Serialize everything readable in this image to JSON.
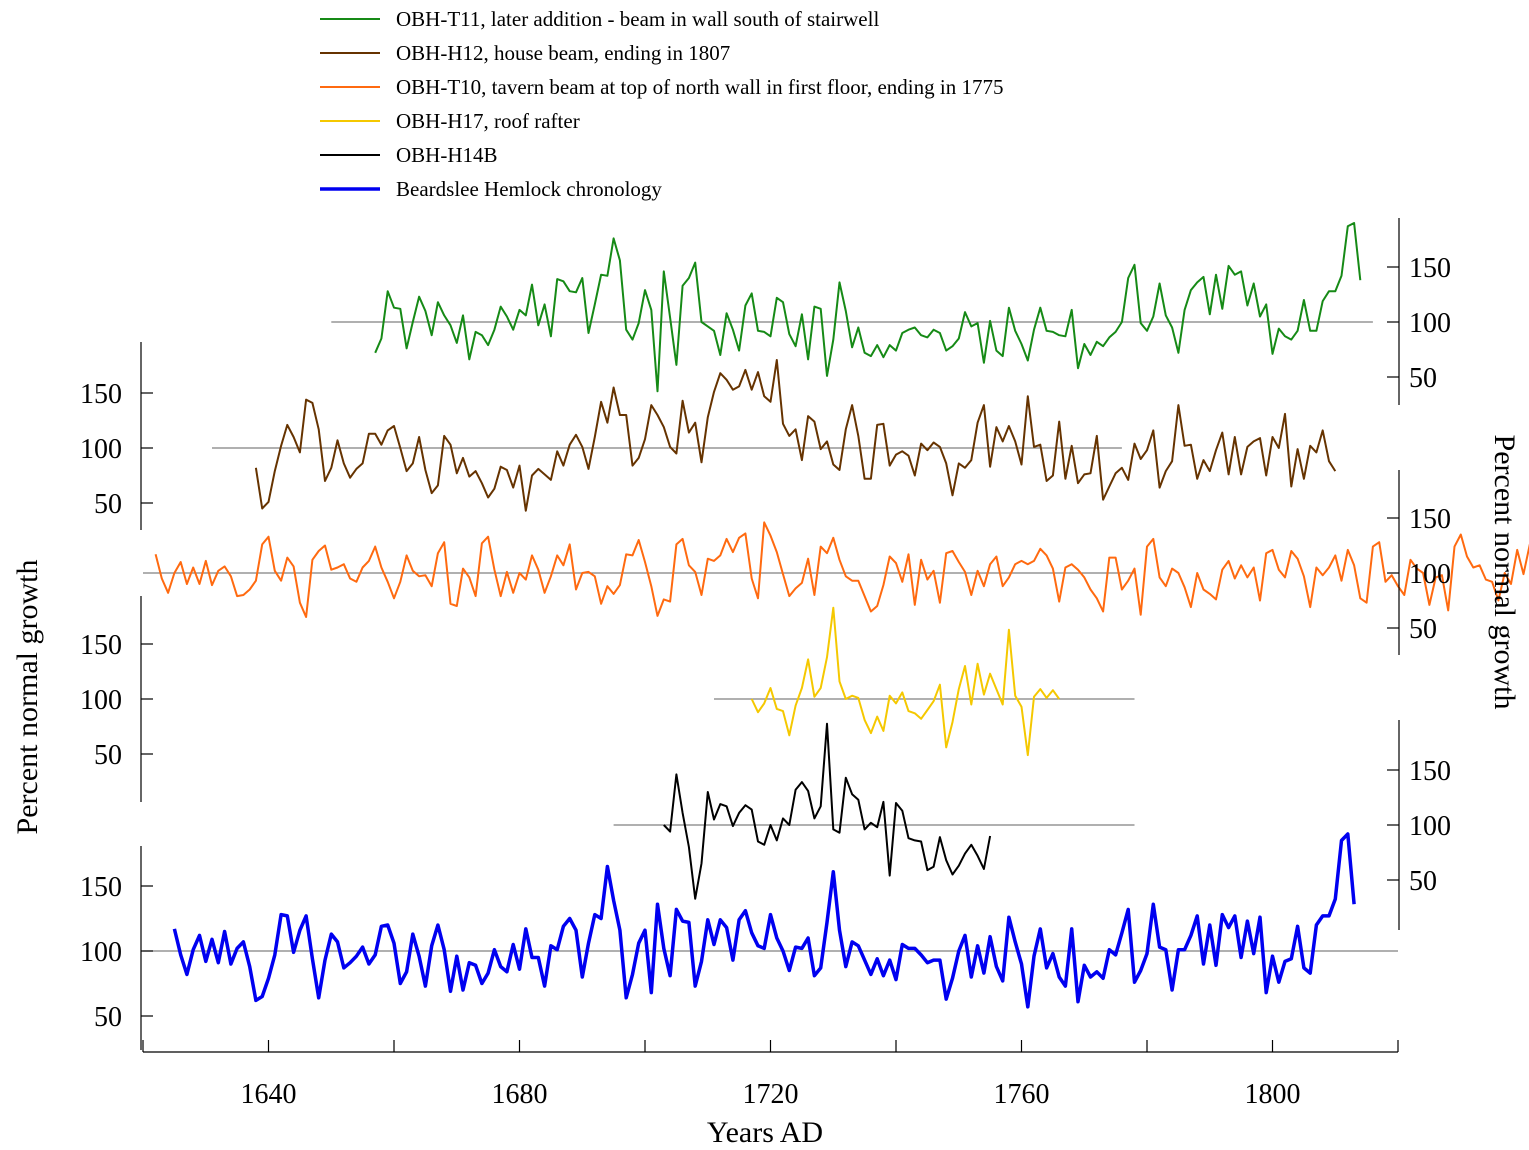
{
  "chart_data": {
    "type": "line",
    "xlabel": "Years AD",
    "ylabel_left": "Percent normal growth",
    "ylabel_right": "Percent normal growth",
    "xlim": [
      1620,
      1820
    ],
    "x_ticks": [
      1640,
      1680,
      1720,
      1760,
      1800
    ],
    "x_minor_ticks": [
      1620,
      1660,
      1700,
      1740,
      1780,
      1820
    ],
    "y_ticks": [
      50,
      100,
      150
    ],
    "reference_value": 100,
    "legend_position": "top",
    "series": [
      {
        "name": "OBH-T11, later addition - beam in wall south of stairwell",
        "color": "#168a16",
        "axis_side": "right",
        "baseline_extent": [
          1650,
          1816
        ],
        "start": 1657,
        "values": [
          72,
          85,
          128,
          113,
          112,
          76,
          100,
          123,
          110,
          88,
          118,
          106,
          97,
          81,
          106,
          66,
          91,
          88,
          79,
          93,
          114,
          105,
          93,
          111,
          106,
          134,
          97,
          116,
          87,
          139,
          137,
          128,
          127,
          140,
          90,
          116,
          143,
          142,
          176,
          156,
          93,
          84,
          99,
          129,
          111,
          37,
          146,
          104,
          61,
          133,
          140,
          154,
          100,
          96,
          92,
          70,
          108,
          93,
          74,
          115,
          126,
          92,
          91,
          87,
          122,
          118,
          89,
          78,
          107,
          66,
          114,
          112,
          51,
          84,
          136,
          110,
          77,
          95,
          72,
          69,
          79,
          68,
          79,
          74,
          90,
          93,
          95,
          88,
          86,
          93,
          90,
          74,
          78,
          85,
          109,
          96,
          99,
          63,
          101,
          74,
          69,
          113,
          92,
          80,
          65,
          93,
          113,
          92,
          91,
          88,
          87,
          111,
          58,
          80,
          70,
          82,
          78,
          86,
          91,
          100,
          140,
          152,
          99,
          92,
          105,
          135,
          106,
          95,
          72,
          111,
          129,
          136,
          141,
          107,
          143,
          112,
          151,
          143,
          146,
          115,
          135,
          105,
          116,
          71,
          94,
          87,
          84,
          92,
          120,
          92,
          92,
          119,
          128,
          128,
          142,
          187,
          190,
          138
        ]
      },
      {
        "name": "OBH-H12, house beam, ending in 1807",
        "color": "#663300",
        "axis_side": "left",
        "baseline_extent": [
          1631,
          1776
        ],
        "start": 1638,
        "values": [
          82,
          45,
          51,
          79,
          102,
          121,
          110,
          96,
          144,
          141,
          117,
          70,
          82,
          107,
          86,
          73,
          81,
          86,
          113,
          113,
          103,
          116,
          120,
          100,
          79,
          86,
          110,
          80,
          59,
          66,
          111,
          103,
          77,
          91,
          74,
          79,
          68,
          55,
          63,
          83,
          80,
          64,
          84,
          43,
          75,
          81,
          76,
          71,
          97,
          84,
          103,
          112,
          101,
          81,
          110,
          142,
          123,
          155,
          130,
          130,
          84,
          91,
          108,
          139,
          130,
          119,
          101,
          95,
          143,
          114,
          123,
          87,
          128,
          151,
          168,
          162,
          153,
          156,
          171,
          153,
          169,
          147,
          142,
          180,
          122,
          111,
          117,
          89,
          129,
          124,
          99,
          106,
          85,
          80,
          117,
          139,
          111,
          72,
          72,
          121,
          122,
          84,
          94,
          97,
          93,
          75,
          104,
          98,
          105,
          101,
          86,
          57,
          86,
          82,
          89,
          123,
          139,
          83,
          119,
          106,
          120,
          106,
          85,
          147,
          101,
          103,
          70,
          75,
          124,
          72,
          102,
          68,
          76,
          77,
          111,
          53,
          65,
          77,
          82,
          71,
          104,
          90,
          98,
          116,
          64,
          79,
          88,
          139,
          102,
          103,
          72,
          89,
          79,
          98,
          114,
          76,
          110,
          76,
          101,
          106,
          109,
          75,
          110,
          100,
          131,
          65,
          99,
          72,
          102,
          96,
          116,
          88,
          79
        ]
      },
      {
        "name": "OBH-T10, tavern beam at top of north wall in first floor, ending in 1775",
        "color": "#ff6a10",
        "axis_side": "right",
        "baseline_extent": [
          1620,
          1778
        ],
        "start": 1622,
        "values": [
          117,
          95,
          82,
          100,
          110,
          90,
          105,
          90,
          111,
          89,
          102,
          106,
          97,
          79,
          80,
          85,
          93,
          126,
          133,
          102,
          93,
          114,
          106,
          73,
          60,
          112,
          120,
          125,
          103,
          105,
          108,
          95,
          92,
          105,
          111,
          124,
          105,
          92,
          77,
          92,
          116,
          102,
          97,
          98,
          88,
          118,
          128,
          72,
          70,
          104,
          96,
          79,
          127,
          133,
          103,
          79,
          101,
          82,
          100,
          94,
          116,
          103,
          82,
          97,
          116,
          107,
          126,
          85,
          100,
          101,
          97,
          72,
          88,
          81,
          89,
          117,
          116,
          130,
          110,
          88,
          61,
          76,
          74,
          126,
          131,
          107,
          101,
          80,
          113,
          111,
          116,
          131,
          119,
          132,
          136,
          95,
          77,
          146,
          134,
          119,
          99,
          79,
          86,
          91,
          113,
          80,
          124,
          118,
          132,
          112,
          97,
          93,
          93,
          79,
          65,
          70,
          89,
          115,
          109,
          92,
          117,
          71,
          112,
          94,
          102,
          73,
          118,
          120,
          110,
          101,
          80,
          102,
          88,
          108,
          115,
          88,
          96,
          108,
          111,
          108,
          111,
          122,
          116,
          104,
          74,
          105,
          108,
          103,
          96,
          85,
          77,
          65,
          114,
          114,
          85,
          93,
          104,
          62,
          124,
          131,
          96,
          88,
          104,
          100,
          87,
          69,
          100,
          85,
          81,
          76,
          103,
          111,
          95,
          107,
          96,
          105,
          75,
          118,
          121,
          103,
          96,
          120,
          113,
          97,
          69,
          105,
          98,
          105,
          116,
          93,
          121,
          107,
          77,
          73,
          124,
          128,
          92,
          98,
          88,
          80,
          112,
          104,
          100,
          71,
          96,
          98,
          66,
          124,
          135,
          115,
          105,
          107,
          94,
          92,
          75,
          100,
          90,
          121,
          99,
          126,
          86,
          69,
          109,
          110,
          70,
          122,
          91,
          104,
          97,
          82,
          76,
          72,
          96,
          108,
          92,
          94,
          127,
          112,
          85,
          76,
          74,
          84,
          101,
          101,
          97,
          84,
          91,
          109,
          92,
          118,
          101,
          77,
          94,
          102,
          107,
          101,
          77,
          113,
          96,
          89,
          91,
          98,
          103,
          95,
          98,
          79,
          114,
          103,
          103,
          87,
          90,
          101,
          115,
          96,
          85,
          82,
          100,
          113,
          81,
          100,
          109,
          88,
          88,
          105,
          100,
          94,
          98,
          103,
          120,
          97,
          87,
          95,
          121,
          106,
          80,
          99,
          106,
          108,
          98,
          110,
          99,
          82,
          86,
          100,
          114,
          110,
          101,
          110,
          105,
          98,
          106,
          101,
          90,
          88,
          97,
          104,
          108,
          97,
          97,
          100,
          100,
          97,
          112,
          105,
          100,
          97,
          94,
          110,
          96,
          106,
          98,
          115,
          95,
          99,
          121,
          118,
          103,
          110,
          117,
          108,
          97,
          108,
          101,
          94,
          120,
          112,
          94,
          102,
          103,
          101,
          103,
          99,
          98,
          112,
          95,
          98,
          110,
          108,
          106,
          96,
          115,
          97,
          85,
          100,
          95,
          106,
          98,
          116,
          95,
          99,
          100,
          109,
          115,
          93,
          99,
          103,
          107,
          93,
          90,
          105,
          110
        ]
      },
      {
        "name": "OBH-H17, roof rafter",
        "color": "#f5c800",
        "axis_side": "left",
        "baseline_extent": [
          1711,
          1778
        ],
        "start": 1717,
        "values": [
          100,
          88,
          96,
          110,
          91,
          89,
          67,
          94,
          110,
          136,
          102,
          110,
          138,
          183,
          116,
          100,
          103,
          101,
          81,
          69,
          84,
          71,
          103,
          96,
          106,
          89,
          87,
          82,
          90,
          98,
          113,
          56,
          79,
          109,
          130,
          95,
          132,
          104,
          123,
          109,
          95,
          163,
          103,
          93,
          49,
          102,
          109,
          101,
          108,
          100
        ]
      },
      {
        "name": "OBH-H14B",
        "color": "#000000",
        "axis_side": "right",
        "baseline_extent": [
          1695,
          1778
        ],
        "start": 1703,
        "values": [
          100,
          94,
          146,
          111,
          80,
          33,
          65,
          130,
          105,
          119,
          117,
          99,
          111,
          118,
          114,
          85,
          82,
          100,
          86,
          106,
          100,
          132,
          139,
          131,
          106,
          117,
          192,
          96,
          93,
          143,
          128,
          123,
          96,
          102,
          98,
          121,
          54,
          120,
          113,
          88,
          86,
          85,
          59,
          62,
          89,
          68,
          55,
          63,
          74,
          82,
          72,
          60,
          90
        ]
      },
      {
        "name": "Beardslee Hemlock chronology",
        "color": "#0000f0",
        "axis_side": "left",
        "baseline_extent": [
          1620,
          1820
        ],
        "start": 1625,
        "values": [
          117,
          97,
          82,
          101,
          112,
          92,
          109,
          91,
          115,
          90,
          102,
          107,
          88,
          62,
          65,
          79,
          97,
          128,
          127,
          99,
          116,
          127,
          94,
          64,
          93,
          113,
          107,
          87,
          91,
          96,
          103,
          90,
          97,
          119,
          120,
          106,
          75,
          84,
          113,
          96,
          73,
          104,
          120,
          101,
          69,
          96,
          70,
          91,
          89,
          75,
          83,
          101,
          88,
          84,
          105,
          86,
          117,
          95,
          95,
          73,
          104,
          101,
          119,
          125,
          116,
          80,
          106,
          128,
          125,
          165,
          139,
          116,
          64,
          82,
          106,
          116,
          68,
          136,
          102,
          81,
          132,
          123,
          122,
          73,
          92,
          124,
          105,
          124,
          118,
          93,
          124,
          131,
          114,
          104,
          102,
          128,
          110,
          100,
          85,
          103,
          102,
          110,
          81,
          87,
          122,
          161,
          116,
          88,
          107,
          104,
          93,
          82,
          94,
          81,
          93,
          78,
          105,
          102,
          102,
          97,
          91,
          93,
          93,
          63,
          79,
          100,
          112,
          80,
          104,
          83,
          111,
          88,
          77,
          126,
          107,
          90,
          57,
          96,
          117,
          87,
          98,
          80,
          73,
          117,
          61,
          89,
          80,
          84,
          79,
          101,
          97,
          114,
          132,
          76,
          85,
          98,
          136,
          103,
          101,
          70,
          101,
          101,
          112,
          127,
          90,
          120,
          89,
          128,
          118,
          127,
          95,
          123,
          98,
          126,
          68,
          96,
          76,
          92,
          94,
          119,
          87,
          83,
          120,
          127,
          127,
          140,
          185,
          190,
          136
        ]
      }
    ]
  }
}
